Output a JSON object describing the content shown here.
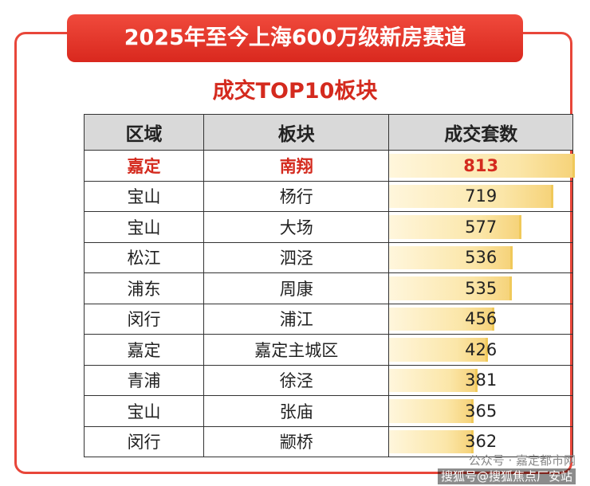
{
  "header": {
    "title": "2025年至今上海600万级新房赛道",
    "subtitle": "成交TOP10板块"
  },
  "table": {
    "columns": [
      "区域",
      "板块",
      "成交套数"
    ],
    "rows": [
      [
        "嘉定",
        "南翔",
        813
      ],
      [
        "宝山",
        "杨行",
        719
      ],
      [
        "宝山",
        "大场",
        577
      ],
      [
        "松江",
        "泗泾",
        536
      ],
      [
        "浦东",
        "周康",
        535
      ],
      [
        "闵行",
        "浦江",
        456
      ],
      [
        "嘉定",
        "嘉定主城区",
        426
      ],
      [
        "青浦",
        "徐泾",
        381
      ],
      [
        "宝山",
        "张庙",
        365
      ],
      [
        "闵行",
        "颛桥",
        362
      ]
    ]
  },
  "watermark": {
    "line1": "公众号 · 嘉定都市网",
    "line2": "搜狐号@搜狐焦点厂安站"
  }
}
